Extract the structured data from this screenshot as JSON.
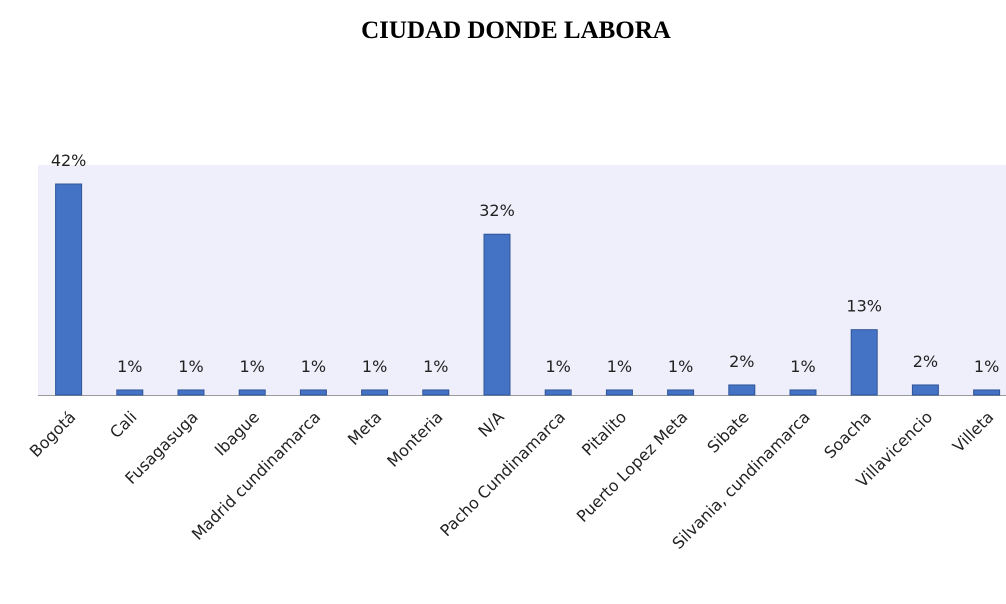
{
  "chart_data": {
    "type": "bar",
    "title": "CIUDAD DONDE LABORA",
    "categories": [
      "Bogotá",
      "Cali",
      "Fusagasuga",
      "Ibague",
      "Madrid cundinamarca",
      "Meta",
      "Monteria",
      "N/A",
      "Pacho Cundinamarca",
      "Pitalito",
      "Puerto Lopez Meta",
      "Sibate",
      "Silvania, cundinamarca",
      "Soacha",
      "Villavicencio",
      "Villeta"
    ],
    "values": [
      42,
      1,
      1,
      1,
      1,
      1,
      1,
      32,
      1,
      1,
      1,
      2,
      1,
      13,
      2,
      1
    ],
    "value_labels": [
      "42%",
      "1%",
      "1%",
      "1%",
      "1%",
      "1%",
      "1%",
      "32%",
      "1%",
      "1%",
      "1%",
      "2%",
      "1%",
      "13%",
      "2%",
      "1%"
    ],
    "color": "#4472c4"
  }
}
